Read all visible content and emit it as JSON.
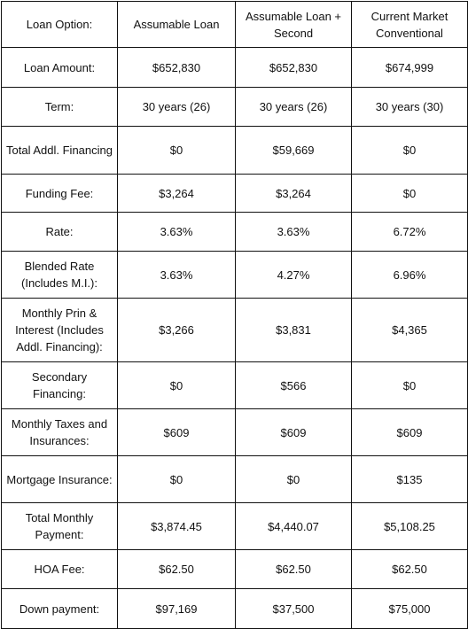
{
  "header": {
    "label": "Loan Option:",
    "columns": [
      "Assumable Loan",
      "Assumable Loan + Second",
      "Current Market Conventional"
    ]
  },
  "rows": [
    {
      "label": "Loan Amount:",
      "values": [
        "$652,830",
        "$652,830",
        "$674,999"
      ]
    },
    {
      "label": "Term:",
      "values": [
        "30 years (26)",
        "30 years (26)",
        "30 years (30)"
      ]
    },
    {
      "label": "Total Addl. Financing",
      "values": [
        "$0",
        "$59,669",
        "$0"
      ]
    },
    {
      "label": "Funding Fee:",
      "values": [
        "$3,264",
        "$3,264",
        "$0"
      ]
    },
    {
      "label": "Rate:",
      "values": [
        "3.63%",
        "3.63%",
        "6.72%"
      ]
    },
    {
      "label": "Blended Rate (Includes M.I.):",
      "values": [
        "3.63%",
        "4.27%",
        "6.96%"
      ]
    },
    {
      "label": "Monthly Prin & Interest (Includes Addl. Financing):",
      "values": [
        "$3,266",
        "$3,831",
        "$4,365"
      ]
    },
    {
      "label": "Secondary Financing:",
      "values": [
        "$0",
        "$566",
        "$0"
      ]
    },
    {
      "label": "Monthly Taxes and Insurances:",
      "values": [
        "$609",
        "$609",
        "$609"
      ]
    },
    {
      "label": "Mortgage Insurance:",
      "values": [
        "$0",
        "$0",
        "$135"
      ]
    },
    {
      "label": "Total Monthly Payment:",
      "values": [
        "$3,874.45",
        "$4,440.07",
        "$5,108.25"
      ]
    },
    {
      "label": "HOA Fee:",
      "values": [
        "$62.50",
        "$62.50",
        "$62.50"
      ]
    },
    {
      "label": "Down payment:",
      "values": [
        "$97,169",
        "$37,500",
        "$75,000"
      ]
    }
  ]
}
